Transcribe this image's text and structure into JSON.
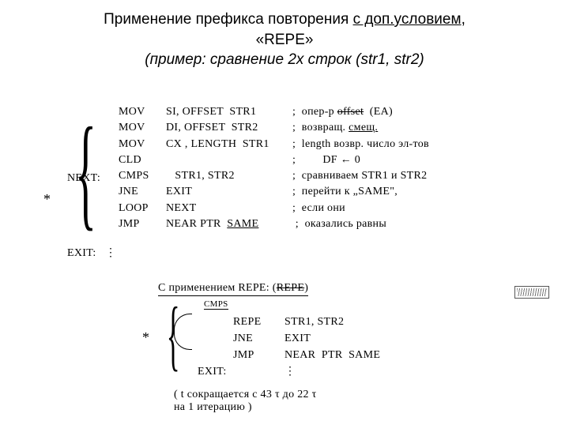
{
  "title": {
    "line1a": "Применение префикса повторения ",
    "line1b": "с доп.условием",
    "line1c": ",",
    "line2": "«REPE»",
    "line3": "(пример:  сравнение 2х строк (str1, str2)"
  },
  "labels": {
    "next": "NEXT:",
    "exit": "EXIT:",
    "exit2": "EXIT:",
    "star": "*",
    "star2": "*",
    "cmps_over": "CMPS"
  },
  "block1": [
    {
      "op": "MOV",
      "args": "SI, OFFSET  STR1",
      "cmt": ";  опер-р ",
      "cmt_strike": "offset",
      "cmt_tail": "  (EA)"
    },
    {
      "op": "MOV",
      "args": "DI, OFFSET  STR2",
      "cmt": ";  возвращ. ",
      "cmt_u": "смещ."
    },
    {
      "op": "MOV",
      "args": "CX , LENGTH  STR1",
      "cmt": ";  length возвр. число эл-тов"
    },
    {
      "op": "CLD",
      "args": "",
      "cmt": ";         DF ← 0"
    },
    {
      "op": "CMPS",
      "args": "   STR1, STR2",
      "cmt": ";  сравниваем STR1 и STR2"
    },
    {
      "op": "JNE",
      "args": "EXIT",
      "cmt": ";  перейти к „SAME\","
    },
    {
      "op": "LOOP",
      "args": "NEXT",
      "cmt": ";  если они"
    },
    {
      "op": "JMP",
      "args": "NEAR PTR  ",
      "args_u": "SAME",
      "cmt": " ;  оказались равны"
    }
  ],
  "exit_dots": "⋮",
  "block2": {
    "title_a": "С  применением  REPE:   (",
    "title_strike": "REPE",
    "title_b": ")",
    "lines": [
      {
        "lbl": "",
        "op": "REPE",
        "args": "STR1, STR2"
      },
      {
        "lbl": "",
        "op": "JNE",
        "args": "EXIT"
      },
      {
        "lbl": "",
        "op": "JMP",
        "args": "NEAR  PTR  SAME"
      },
      {
        "lbl": "EXIT:",
        "op": "",
        "args": "⋮"
      }
    ]
  },
  "footnote": {
    "l1": "( t сокращается  с 43 τ   до 22 τ",
    "l2": "   на 1 итерацию )"
  }
}
